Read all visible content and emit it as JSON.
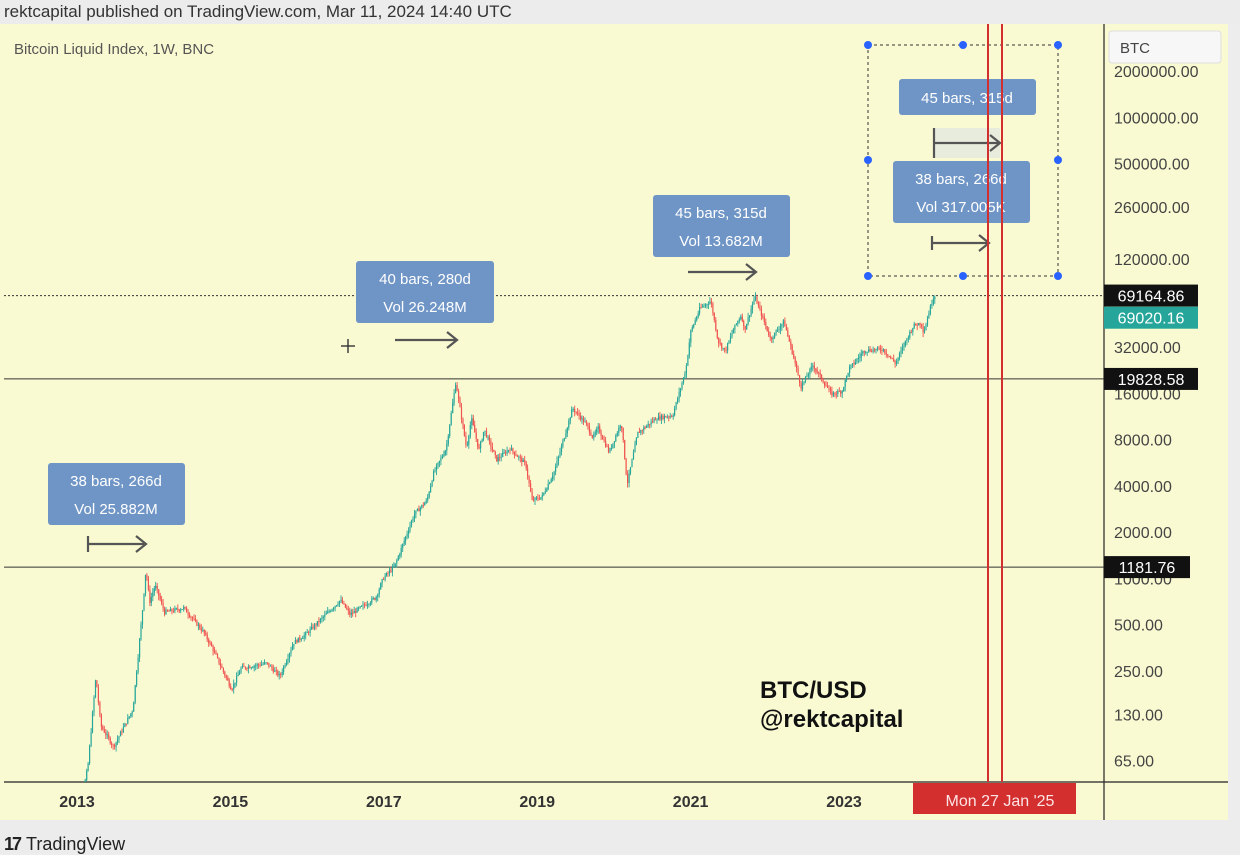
{
  "header": {
    "published_text": "rektcapital published on TradingView.com, Mar 11, 2024 14:40 UTC"
  },
  "footer": {
    "brand_glyph": "17",
    "brand_name": "TradingView"
  },
  "colors": {
    "background": "#fafad2",
    "up": "#26a69a",
    "down": "#ef5350",
    "label_box": "#6f95c6",
    "vertical_lines": "#d32f2f",
    "last_price": "#26a69a"
  },
  "chart_data": {
    "type": "candlestick",
    "title": "Bitcoin Liquid Index, 1W, BNC",
    "scale": "log",
    "watermark": [
      "BTC/USD",
      "@rektcapital"
    ],
    "currency_button": "BTC",
    "x_ticks": [
      "2013",
      "2015",
      "2017",
      "2019",
      "2021",
      "2023"
    ],
    "y_ticks": [
      "2000000.00",
      "1000000.00",
      "500000.00",
      "260000.00",
      "120000.00",
      "32000.00",
      "16000.00",
      "8000.00",
      "4000.00",
      "2000.00",
      "1000.00",
      "500.00",
      "250.00",
      "130.00",
      "65.00"
    ],
    "ylim": [
      50,
      2200000
    ],
    "horizontal_levels": [
      {
        "value": 1181.76,
        "label": "1181.76"
      },
      {
        "value": 19828.58,
        "label": "19828.58"
      },
      {
        "value": 69164.86,
        "label": "69164.86",
        "dashed": true
      }
    ],
    "last_price": {
      "value": 69020.16,
      "label": "69020.16"
    },
    "crosshair_date_label": "Mon 27 Jan '25",
    "price_path": [
      [
        "2012-12-01",
        13
      ],
      [
        "2013-03-01",
        60
      ],
      [
        "2013-04-08",
        230
      ],
      [
        "2013-05-01",
        110
      ],
      [
        "2013-07-01",
        80
      ],
      [
        "2013-10-01",
        140
      ],
      [
        "2013-11-15",
        600
      ],
      [
        "2013-12-02",
        1150
      ],
      [
        "2013-12-20",
        700
      ],
      [
        "2014-01-15",
        900
      ],
      [
        "2014-03-01",
        600
      ],
      [
        "2014-06-01",
        640
      ],
      [
        "2014-09-01",
        450
      ],
      [
        "2014-10-15",
        350
      ],
      [
        "2015-01-14",
        190
      ],
      [
        "2015-03-01",
        260
      ],
      [
        "2015-07-01",
        280
      ],
      [
        "2015-09-01",
        230
      ],
      [
        "2015-11-05",
        380
      ],
      [
        "2016-01-01",
        430
      ],
      [
        "2016-06-15",
        720
      ],
      [
        "2016-08-01",
        580
      ],
      [
        "2016-12-01",
        750
      ],
      [
        "2017-01-05",
        1000
      ],
      [
        "2017-03-01",
        1200
      ],
      [
        "2017-06-01",
        2600
      ],
      [
        "2017-08-01",
        3200
      ],
      [
        "2017-09-01",
        4800
      ],
      [
        "2017-11-01",
        7000
      ],
      [
        "2017-12-17",
        19000
      ],
      [
        "2018-01-01",
        14000
      ],
      [
        "2018-02-06",
        7000
      ],
      [
        "2018-03-01",
        11000
      ],
      [
        "2018-04-06",
        6800
      ],
      [
        "2018-05-01",
        9300
      ],
      [
        "2018-06-29",
        5900
      ],
      [
        "2018-09-01",
        7000
      ],
      [
        "2018-11-15",
        5500
      ],
      [
        "2018-12-15",
        3200
      ],
      [
        "2019-02-01",
        3400
      ],
      [
        "2019-04-01",
        5000
      ],
      [
        "2019-06-26",
        12800
      ],
      [
        "2019-09-01",
        10000
      ],
      [
        "2019-10-01",
        8200
      ],
      [
        "2019-10-26",
        9500
      ],
      [
        "2019-12-17",
        6600
      ],
      [
        "2020-02-13",
        10400
      ],
      [
        "2020-03-12",
        4100
      ],
      [
        "2020-05-01",
        8800
      ],
      [
        "2020-07-27",
        11000
      ],
      [
        "2020-10-15",
        11500
      ],
      [
        "2020-12-17",
        23000
      ],
      [
        "2021-01-08",
        40000
      ],
      [
        "2021-02-21",
        57000
      ],
      [
        "2021-04-14",
        64000
      ],
      [
        "2021-05-19",
        35000
      ],
      [
        "2021-06-22",
        30000
      ],
      [
        "2021-08-01",
        42000
      ],
      [
        "2021-09-07",
        52000
      ],
      [
        "2021-09-21",
        41000
      ],
      [
        "2021-11-10",
        68000
      ],
      [
        "2022-01-24",
        36000
      ],
      [
        "2022-03-28",
        47000
      ],
      [
        "2022-05-12",
        28000
      ],
      [
        "2022-06-18",
        17600
      ],
      [
        "2022-08-14",
        24400
      ],
      [
        "2022-11-09",
        15800
      ],
      [
        "2022-12-30",
        16500
      ],
      [
        "2023-02-01",
        23000
      ],
      [
        "2023-03-17",
        27000
      ],
      [
        "2023-04-14",
        30400
      ],
      [
        "2023-07-13",
        31000
      ],
      [
        "2023-09-11",
        25000
      ],
      [
        "2023-10-25",
        34000
      ],
      [
        "2023-12-05",
        44000
      ],
      [
        "2024-01-11",
        46000
      ],
      [
        "2024-01-23",
        39500
      ],
      [
        "2024-02-14",
        52000
      ],
      [
        "2024-03-01",
        62000
      ],
      [
        "2024-03-11",
        69000
      ]
    ],
    "annotations": [
      {
        "line1": "38 bars, 266d",
        "line2": "Vol 25.882M"
      },
      {
        "line1": "40 bars, 280d",
        "line2": "Vol 26.248M"
      },
      {
        "line1": "45 bars, 315d",
        "line2": "Vol 13.682M"
      },
      {
        "line1": "45 bars, 315d",
        "line2": ""
      },
      {
        "line1": "38 bars, 266d",
        "line2": "Vol 317.005K"
      }
    ]
  }
}
